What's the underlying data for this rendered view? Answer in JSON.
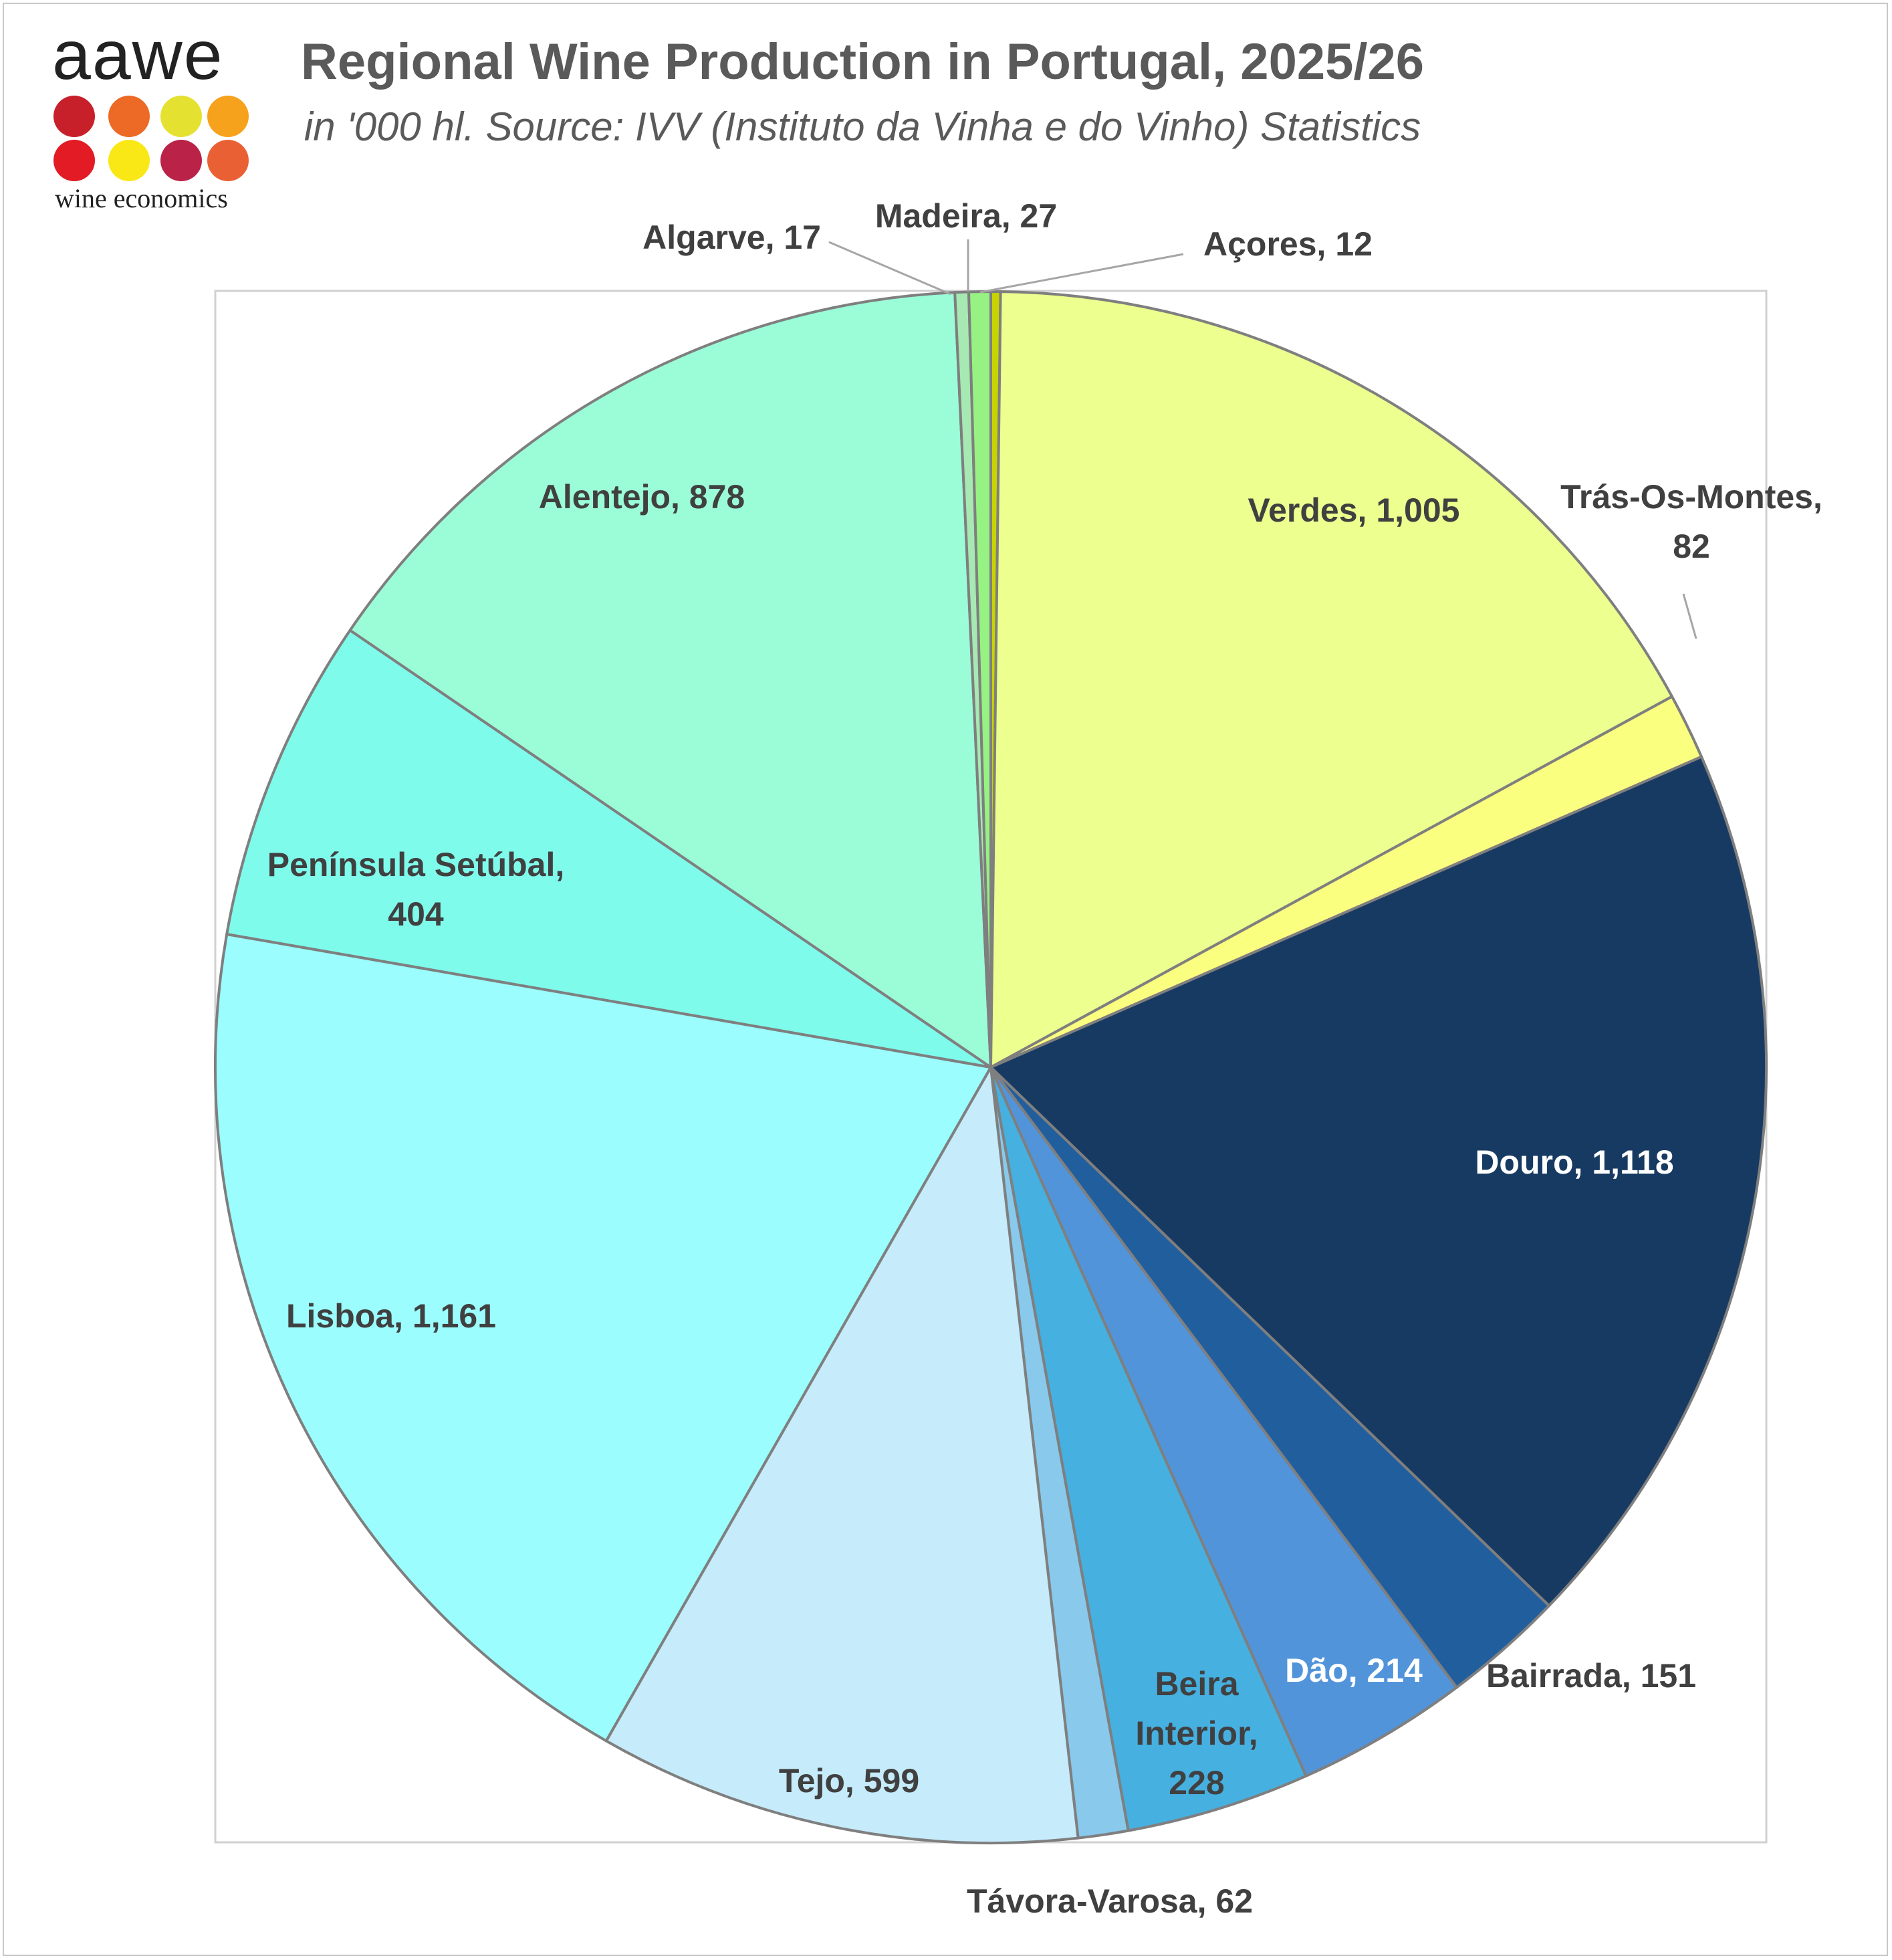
{
  "logo": {
    "wordmark": "aawe",
    "tagline": "wine economics",
    "dot_colors": [
      "#c8202a",
      "#ec6a25",
      "#e5e131",
      "#f6a21c",
      "#e21b24",
      "#fae816",
      "#ba2248",
      "#ea6035"
    ]
  },
  "chart_data": {
    "type": "pie",
    "title": "Regional Wine Production in Portugal, 2025/26",
    "subtitle": "in '000 hl. Source: IVV (Instituto da Vinha e do Vinho) Statistics",
    "start_angle_deg": 0,
    "direction": "clockwise",
    "slices": [
      {
        "label": "Açores",
        "value": 12,
        "display": "Açores, 12",
        "color": "#c8d400",
        "text_color": "#404040"
      },
      {
        "label": "Verdes",
        "value": 1005,
        "display": "Verdes, 1,005",
        "color": "#ecff8f",
        "text_color": "#404040"
      },
      {
        "label": "Trás-Os-Montes",
        "value": 82,
        "display": "Trás-Os-Montes, 82",
        "color": "#fbff80",
        "text_color": "#404040"
      },
      {
        "label": "Douro",
        "value": 1118,
        "display": "Douro, 1,118",
        "color": "#173a62",
        "text_color": "#ffffff"
      },
      {
        "label": "Bairrada",
        "value": 151,
        "display": "Bairrada, 151",
        "color": "#215e9e",
        "text_color": "#404040"
      },
      {
        "label": "Dão",
        "value": 214,
        "display": "Dão, 214",
        "color": "#5294da",
        "text_color": "#ffffff"
      },
      {
        "label": "Beira Interior",
        "value": 228,
        "display": "Beira Interior, 228",
        "color": "#46b0e1",
        "text_color": "#404040"
      },
      {
        "label": "Távora-Varosa",
        "value": 62,
        "display": "Távora-Varosa, 62",
        "color": "#88c9ec",
        "text_color": "#404040"
      },
      {
        "label": "Tejo",
        "value": 599,
        "display": "Tejo, 599",
        "color": "#c6ebfb",
        "text_color": "#404040"
      },
      {
        "label": "Lisboa",
        "value": 1161,
        "display": "Lisboa, 1,161",
        "color": "#9bfdfd",
        "text_color": "#404040"
      },
      {
        "label": "Península Setúbal",
        "value": 404,
        "display": "Península Setúbal, 404",
        "color": "#7ffbec",
        "text_color": "#404040"
      },
      {
        "label": "Alentejo",
        "value": 878,
        "display": "Alentejo, 878",
        "color": "#9bfdd8",
        "text_color": "#404040"
      },
      {
        "label": "Algarve",
        "value": 17,
        "display": "Algarve, 17",
        "color": "#a6e9b2",
        "text_color": "#404040"
      },
      {
        "label": "Madeira",
        "value": 27,
        "display": "Madeira, 27",
        "color": "#96f283",
        "text_color": "#404040"
      }
    ],
    "slice_border_color": "#7f7f7f",
    "plot_border_color": "#d0d0d0"
  }
}
